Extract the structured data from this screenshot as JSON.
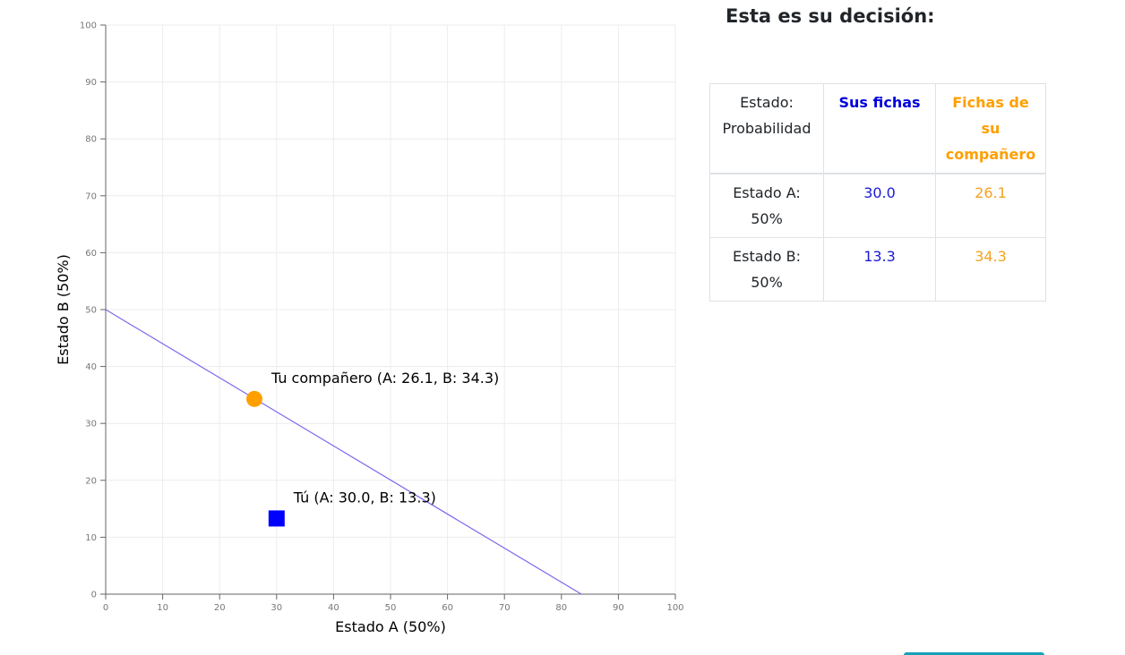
{
  "chart_data": {
    "type": "scatter",
    "xlabel": "Estado A (50%)",
    "ylabel": "Estado B (50%)",
    "xlim": [
      0,
      100
    ],
    "ylim": [
      0,
      100
    ],
    "x_ticks": [
      0,
      10,
      20,
      30,
      40,
      50,
      60,
      70,
      80,
      90,
      100
    ],
    "y_ticks": [
      0,
      10,
      20,
      30,
      40,
      50,
      60,
      70,
      80,
      90,
      100
    ],
    "grid": true,
    "budget_line": {
      "x": [
        0,
        83.5
      ],
      "y": [
        50,
        0
      ]
    },
    "points": [
      {
        "label": "Tu compañero (A: 26.1, B: 34.3)",
        "x": 26.1,
        "y": 34.3,
        "marker": "circle",
        "color": "#ff9f00"
      },
      {
        "label": "Tú (A: 30.0, B: 13.3)",
        "x": 30.0,
        "y": 13.3,
        "marker": "square",
        "color": "#0000ff"
      }
    ],
    "line_color": "#7b68ee"
  },
  "panel": {
    "title": "Esta es su decisión:",
    "headers": {
      "state": "Estado: Probabilidad",
      "own": "Sus fichas",
      "partner": "Fichas de su compañero"
    },
    "rows": [
      {
        "state": "Estado A: 50%",
        "own": "30.0",
        "partner": "26.1"
      },
      {
        "state": "Estado B: 50%",
        "own": "13.3",
        "partner": "34.3"
      }
    ]
  },
  "colors": {
    "own": "#0000dd",
    "partner": "#ff9f00",
    "accent": "#17a2b8"
  }
}
